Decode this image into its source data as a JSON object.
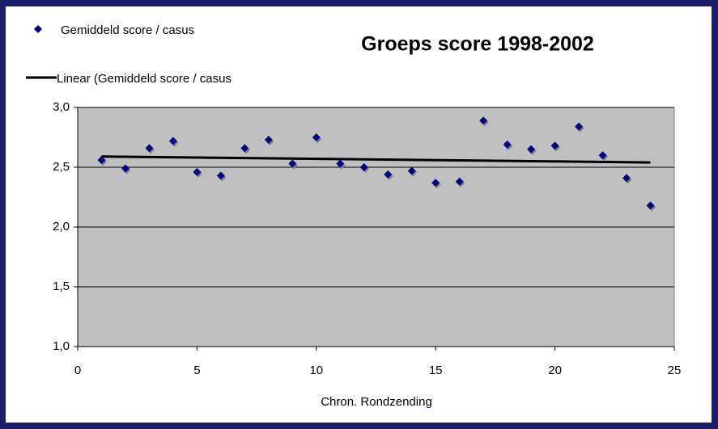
{
  "chart_data": {
    "type": "scatter",
    "title": "Groeps score 1998-2002",
    "x_label": "Chron. Rondzending",
    "x": [
      1,
      2,
      3,
      4,
      5,
      6,
      7,
      8,
      9,
      10,
      11,
      12,
      13,
      14,
      15,
      16,
      17,
      18,
      19,
      20,
      21,
      22,
      23,
      24
    ],
    "series": [
      {
        "name": "Gemiddeld score / casus",
        "color": "#000080",
        "values": [
          2.56,
          2.49,
          2.66,
          2.72,
          2.46,
          2.43,
          2.66,
          2.73,
          2.53,
          2.75,
          2.53,
          2.5,
          2.44,
          2.47,
          2.37,
          2.38,
          2.89,
          2.69,
          2.65,
          2.68,
          2.84,
          2.6,
          2.41,
          2.18
        ]
      },
      {
        "name": "Linear (Gemiddeld score / casus",
        "color": "#000000",
        "type": "line",
        "x": [
          1,
          24
        ],
        "values": [
          2.59,
          2.54
        ]
      }
    ],
    "xlim": [
      0,
      25
    ],
    "xticks": [
      0,
      5,
      10,
      15,
      20,
      25
    ],
    "ylim": [
      1.0,
      3.0
    ],
    "yticks": [
      {
        "value": 1.0,
        "label": "1,0"
      },
      {
        "value": 1.5,
        "label": "1,5"
      },
      {
        "value": 2.0,
        "label": "2,0"
      },
      {
        "value": 2.5,
        "label": "2,5"
      },
      {
        "value": 3.0,
        "label": "3,0"
      }
    ],
    "grid": true,
    "plot_background": "#c0c0c0"
  }
}
